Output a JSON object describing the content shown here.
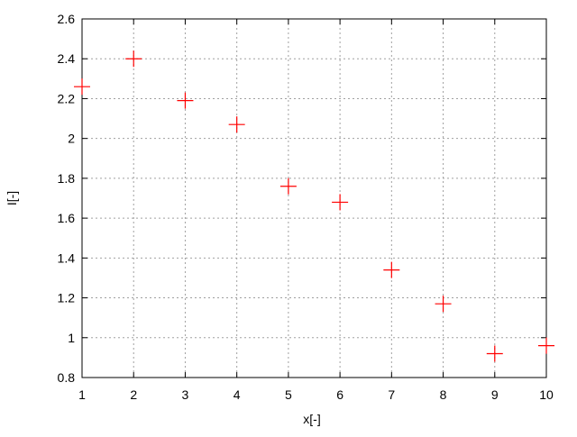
{
  "chart_data": {
    "type": "scatter",
    "title": "",
    "xlabel": "x[-]",
    "ylabel": "I[-]",
    "xlim": [
      1,
      10
    ],
    "ylim": [
      0.8,
      2.6
    ],
    "xticks": [
      "1",
      "2",
      "3",
      "4",
      "5",
      "6",
      "7",
      "8",
      "9",
      "10"
    ],
    "yticks": [
      "0.8",
      "1",
      "1.2",
      "1.4",
      "1.6",
      "1.8",
      "2",
      "2.2",
      "2.4",
      "2.6"
    ],
    "grid": true,
    "marker": "plus",
    "color": "#ff0000",
    "x": [
      1,
      2,
      3,
      4,
      5,
      6,
      7,
      8,
      9,
      10
    ],
    "y": [
      2.26,
      2.4,
      2.19,
      2.07,
      1.76,
      1.68,
      1.34,
      1.17,
      0.92,
      0.96
    ]
  }
}
